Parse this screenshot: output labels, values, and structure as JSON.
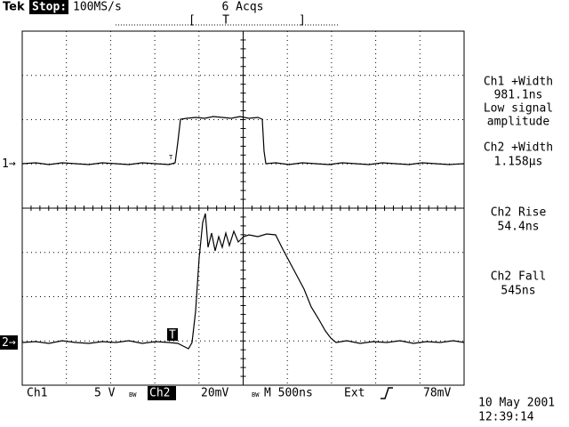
{
  "header": {
    "brand": "Tek",
    "status": "Stop:",
    "sample_rate": "100MS/s",
    "acquisitions": "6 Acqs",
    "trigger_position_marker": "T"
  },
  "channel_markers": [
    "1",
    "2"
  ],
  "trigger_marks": [
    "T",
    "T"
  ],
  "measurements": [
    {
      "label": "Ch1 +Width",
      "value": "981.1ns",
      "note": [
        "Low signal",
        "amplitude"
      ]
    },
    {
      "label": "Ch2 +Width",
      "value": "1.158µs"
    },
    {
      "label": "Ch2 Rise",
      "value": "54.4ns"
    },
    {
      "label": "Ch2 Fall",
      "value": "545ns"
    }
  ],
  "footer": {
    "ch1": "Ch1",
    "ch1_scale": "5 V",
    "bw1": "BW",
    "ch2": "Ch2",
    "ch2_scale": "20mV",
    "bw2": "BW",
    "timebase": "M 500ns",
    "trigger_source": "Ext",
    "trigger_level": "78mV",
    "date": "10 May 2001",
    "time": "12:39:14"
  }
}
